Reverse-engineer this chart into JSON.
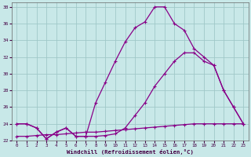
{
  "xlabel": "Windchill (Refroidissement éolien,°C)",
  "xlim": [
    -0.5,
    23.5
  ],
  "ylim": [
    22,
    38.5
  ],
  "yticks": [
    22,
    24,
    26,
    28,
    30,
    32,
    34,
    36,
    38
  ],
  "xticks": [
    0,
    1,
    2,
    3,
    4,
    5,
    6,
    7,
    8,
    9,
    10,
    11,
    12,
    13,
    14,
    15,
    16,
    17,
    18,
    19,
    20,
    21,
    22,
    23
  ],
  "bg_color": "#c8e8e8",
  "grid_color": "#a0c8c8",
  "line_color": "#880088",
  "line1_y": [
    24.0,
    24.0,
    23.5,
    22.2,
    23.0,
    23.5,
    22.5,
    22.5,
    26.5,
    29.0,
    31.5,
    33.8,
    35.5,
    36.2,
    38.0,
    38.0,
    36.0,
    35.2,
    33.0,
    32.0,
    31.0,
    28.0,
    26.0,
    24.0
  ],
  "line2_y": [
    24.0,
    24.0,
    23.5,
    22.2,
    23.0,
    23.5,
    22.5,
    22.5,
    22.5,
    22.6,
    22.8,
    23.5,
    25.0,
    26.5,
    28.5,
    30.0,
    31.5,
    32.5,
    32.5,
    31.5,
    31.0,
    28.0,
    26.0,
    24.0
  ],
  "line3_y": [
    22.5,
    22.5,
    22.6,
    22.7,
    22.7,
    22.8,
    22.9,
    23.0,
    23.0,
    23.1,
    23.2,
    23.3,
    23.4,
    23.5,
    23.6,
    23.7,
    23.8,
    23.9,
    24.0,
    24.0,
    24.0,
    24.0,
    24.0,
    24.0
  ]
}
